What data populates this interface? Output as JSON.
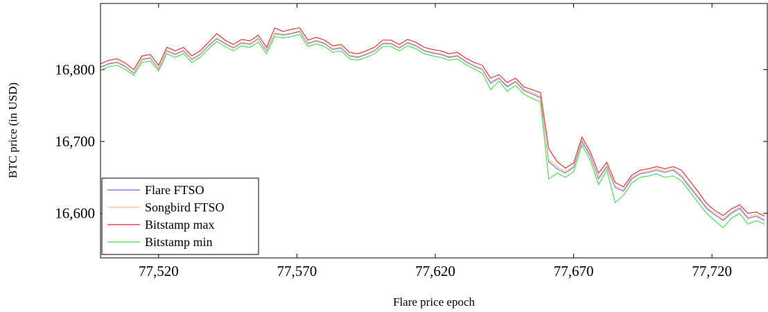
{
  "chart_data": {
    "type": "line",
    "x_label": "Flare price epoch",
    "y_label": "BTC price (in USD)",
    "x": [
      77499,
      77502,
      77505,
      77508,
      77511,
      77514,
      77517,
      77520,
      77523,
      77526,
      77529,
      77532,
      77535,
      77538,
      77541,
      77544,
      77547,
      77550,
      77553,
      77556,
      77559,
      77562,
      77565,
      77568,
      77571,
      77574,
      77577,
      77580,
      77583,
      77586,
      77589,
      77592,
      77595,
      77598,
      77601,
      77604,
      77607,
      77610,
      77613,
      77616,
      77619,
      77622,
      77625,
      77628,
      77631,
      77634,
      77637,
      77640,
      77643,
      77646,
      77649,
      77652,
      77655,
      77658,
      77661,
      77664,
      77667,
      77670,
      77673,
      77676,
      77679,
      77682,
      77685,
      77688,
      77691,
      77694,
      77697,
      77700,
      77703,
      77706,
      77709,
      77712,
      77715,
      77718,
      77721,
      77724,
      77727,
      77730,
      77733,
      77736,
      77739
    ],
    "series": [
      {
        "name": "Flare FTSO",
        "color": "#6b6bee",
        "values": [
          16803,
          16808,
          16810,
          16804,
          16795,
          16814,
          16816,
          16801,
          16826,
          16821,
          16826,
          16814,
          16821,
          16833,
          16843,
          16836,
          16830,
          16837,
          16835,
          16843,
          16826,
          16850,
          16848,
          16850,
          16853,
          16836,
          16840,
          16836,
          16828,
          16830,
          16819,
          16817,
          16821,
          16826,
          16836,
          16836,
          16830,
          16837,
          16833,
          16826,
          16823,
          16821,
          16817,
          16819,
          16811,
          16805,
          16800,
          16781,
          16788,
          16776,
          16783,
          16771,
          16766,
          16761,
          16672,
          16662,
          16656,
          16664,
          16700,
          16680,
          16648,
          16665,
          16636,
          16631,
          16648,
          16655,
          16657,
          16660,
          16657,
          16660,
          16651,
          16636,
          16622,
          16607,
          16598,
          16590,
          16600,
          16607,
          16593,
          16596,
          16590
        ]
      },
      {
        "name": "Songbird FTSO",
        "color": "#ffbf80",
        "values": [
          16804,
          16809,
          16811,
          16805,
          16796,
          16815,
          16817,
          16802,
          16827,
          16822,
          16827,
          16815,
          16822,
          16834,
          16844,
          16837,
          16831,
          16838,
          16836,
          16844,
          16827,
          16851,
          16849,
          16851,
          16854,
          16837,
          16841,
          16837,
          16829,
          16831,
          16820,
          16818,
          16822,
          16827,
          16837,
          16837,
          16831,
          16838,
          16834,
          16827,
          16824,
          16822,
          16818,
          16820,
          16812,
          16806,
          16801,
          16783,
          16789,
          16778,
          16784,
          16773,
          16768,
          16763,
          16675,
          16665,
          16658,
          16666,
          16702,
          16682,
          16650,
          16667,
          16638,
          16633,
          16650,
          16657,
          16659,
          16662,
          16659,
          16662,
          16653,
          16638,
          16624,
          16609,
          16600,
          16592,
          16602,
          16609,
          16595,
          16598,
          16592
        ]
      },
      {
        "name": "Bitstamp max",
        "color": "#e3262e",
        "values": [
          16808,
          16813,
          16815,
          16809,
          16800,
          16819,
          16821,
          16806,
          16831,
          16826,
          16831,
          16819,
          16826,
          16838,
          16850,
          16841,
          16835,
          16842,
          16840,
          16848,
          16831,
          16858,
          16853,
          16856,
          16858,
          16841,
          16845,
          16841,
          16833,
          16835,
          16824,
          16822,
          16826,
          16831,
          16841,
          16841,
          16835,
          16842,
          16838,
          16831,
          16828,
          16826,
          16822,
          16824,
          16816,
          16810,
          16806,
          16788,
          16793,
          16782,
          16788,
          16776,
          16772,
          16768,
          16690,
          16672,
          16663,
          16670,
          16706,
          16686,
          16656,
          16671,
          16643,
          16637,
          16653,
          16660,
          16662,
          16665,
          16662,
          16665,
          16660,
          16645,
          16630,
          16614,
          16604,
          16597,
          16606,
          16612,
          16600,
          16602,
          16596
        ]
      },
      {
        "name": "Bitstamp min",
        "color": "#44dd44",
        "values": [
          16799,
          16804,
          16806,
          16800,
          16792,
          16810,
          16812,
          16798,
          16822,
          16817,
          16822,
          16810,
          16817,
          16829,
          16839,
          16832,
          16826,
          16833,
          16831,
          16838,
          16822,
          16846,
          16844,
          16846,
          16849,
          16832,
          16836,
          16832,
          16824,
          16826,
          16815,
          16813,
          16817,
          16822,
          16832,
          16832,
          16826,
          16833,
          16829,
          16822,
          16819,
          16817,
          16813,
          16815,
          16807,
          16801,
          16795,
          16772,
          16784,
          16770,
          16778,
          16766,
          16760,
          16755,
          16648,
          16656,
          16650,
          16658,
          16695,
          16674,
          16640,
          16660,
          16615,
          16625,
          16642,
          16650,
          16652,
          16655,
          16650,
          16652,
          16645,
          16630,
          16615,
          16600,
          16590,
          16580,
          16593,
          16600,
          16585,
          16590,
          16585
        ]
      }
    ],
    "xlim": [
      77499,
      77740
    ],
    "ylim": [
      16538,
      16892
    ],
    "xticks": [
      {
        "value": 77520,
        "label": "77,520"
      },
      {
        "value": 77570,
        "label": "77,570"
      },
      {
        "value": 77620,
        "label": "77,620"
      },
      {
        "value": 77670,
        "label": "77,670"
      },
      {
        "value": 77720,
        "label": "77,720"
      }
    ],
    "yticks": [
      {
        "value": 16600,
        "label": "16,600"
      },
      {
        "value": 16700,
        "label": "16,700"
      },
      {
        "value": 16800,
        "label": "16,800"
      }
    ],
    "grid": false,
    "legend": "south west"
  }
}
